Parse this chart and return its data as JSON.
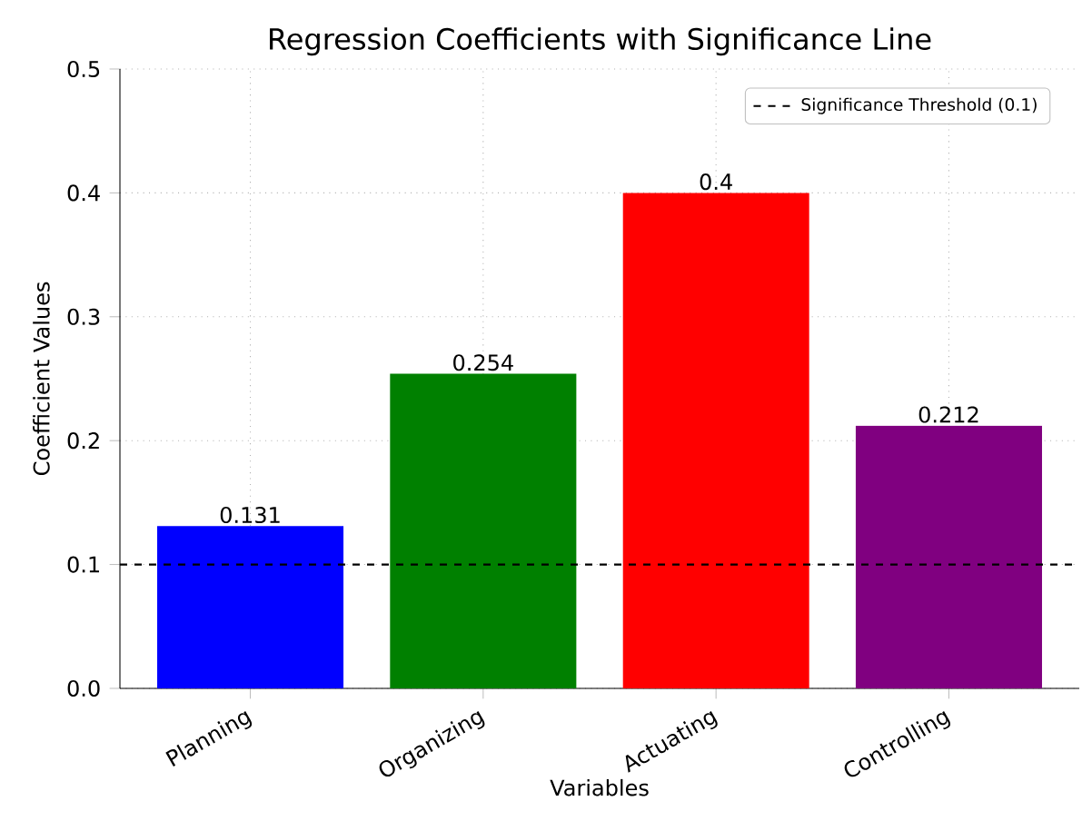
{
  "chart_data": {
    "type": "bar",
    "title": "Regression Coefficients with Significance Line",
    "xlabel": "Variables",
    "ylabel": "Coefficient Values",
    "categories": [
      "Planning",
      "Organizing",
      "Actuating",
      "Controlling"
    ],
    "values": [
      0.131,
      0.254,
      0.4,
      0.212
    ],
    "colors": [
      "#0000ff",
      "#008000",
      "#ff0000",
      "#800080"
    ],
    "ylim": [
      0,
      0.5
    ],
    "yticks": [
      {
        "value": 0,
        "label": "0.0"
      },
      {
        "value": 0.1,
        "label": "0.1"
      },
      {
        "value": 0.2,
        "label": "0.2"
      },
      {
        "value": 0.3,
        "label": "0.3"
      },
      {
        "value": 0.4,
        "label": "0.4"
      },
      {
        "value": 0.5,
        "label": "0.5"
      }
    ],
    "ref_lines": [
      {
        "axis": "y",
        "value": 0.1,
        "label": "Significance Threshold (0.1)",
        "color": "#000000",
        "line_style": "dashed"
      }
    ],
    "grid": true,
    "legend": "top right",
    "data_labels": true
  }
}
